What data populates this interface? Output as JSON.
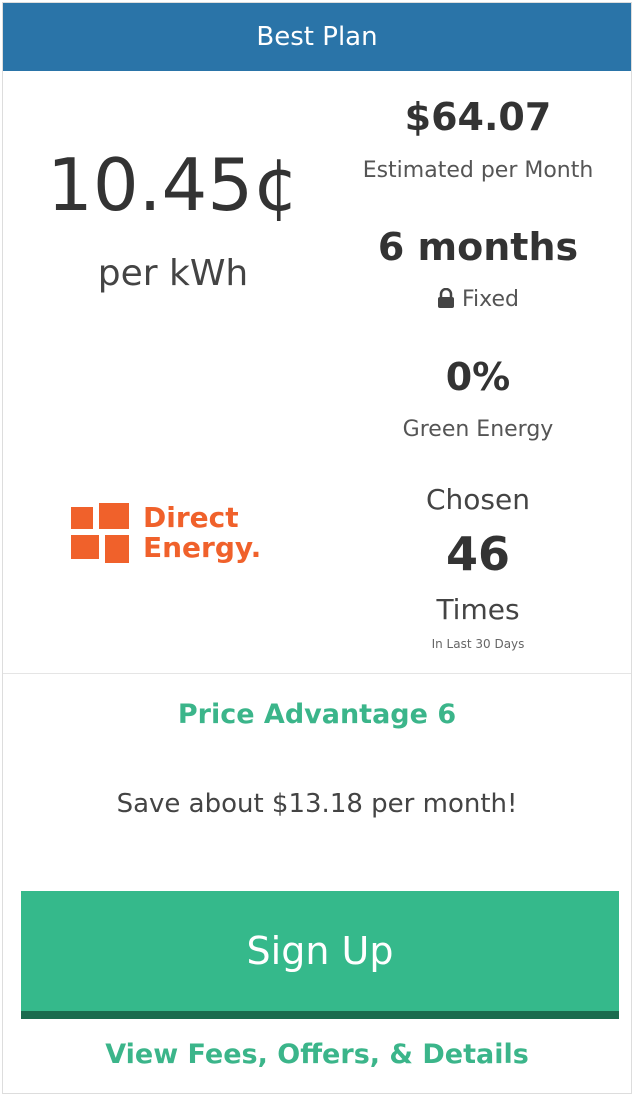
{
  "header": {
    "title": "Best Plan"
  },
  "plan": {
    "rate": "10.45¢",
    "rate_unit": "per kWh",
    "estimate": "$64.07",
    "estimate_label": "Estimated per Month",
    "term": "6 months",
    "term_type": "Fixed",
    "green": "0%",
    "green_label": "Green Energy",
    "provider": [
      "Direct",
      "Energy."
    ],
    "chosen_label": "Chosen",
    "chosen_count": "46",
    "chosen_unit": "Times",
    "chosen_period": "In Last 30 Days"
  },
  "advantage": {
    "title": "Price Advantage 6",
    "savings": "Save about $13.18 per month!"
  },
  "actions": {
    "signup": "Sign Up",
    "details": "View Fees, Offers, & Details"
  }
}
